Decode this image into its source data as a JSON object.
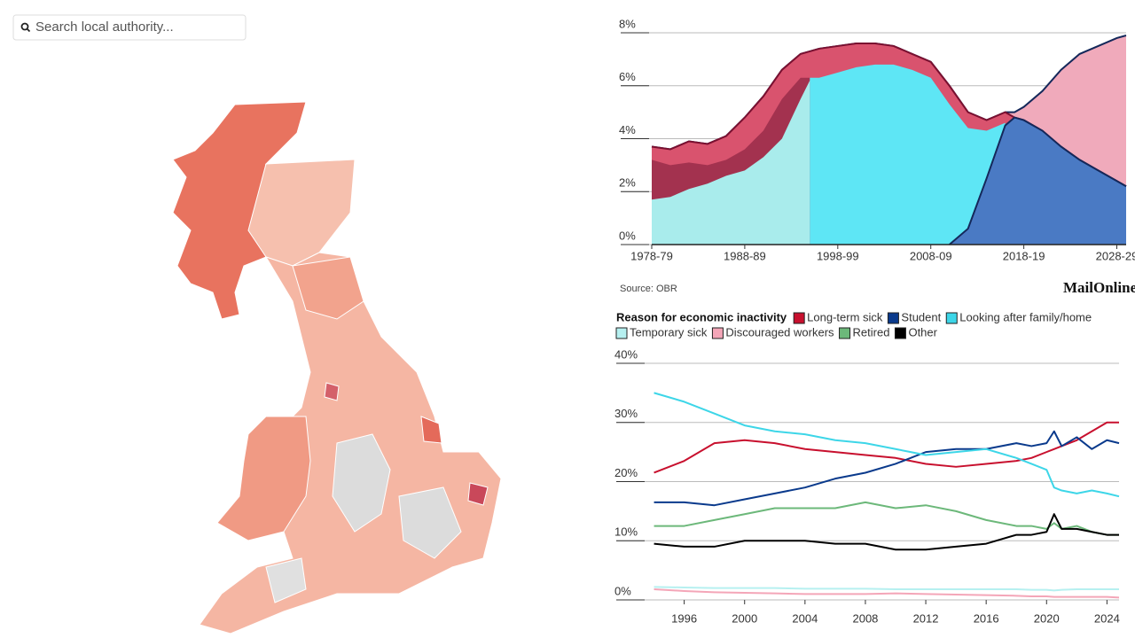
{
  "search": {
    "placeholder": "Search local authority..."
  },
  "logo": "MailOnline",
  "chart_data": [
    {
      "type": "area",
      "source": "Source: OBR",
      "x": [
        1978,
        1980,
        1982,
        1984,
        1986,
        1988,
        1990,
        1992,
        1994,
        1995,
        1996,
        1998,
        2000,
        2002,
        2004,
        2006,
        2008,
        2010,
        2012,
        2014,
        2016,
        2017,
        2018,
        2020,
        2022,
        2024,
        2026,
        2028,
        2029
      ],
      "xlim": [
        1978,
        2029
      ],
      "xticks": [
        {
          "value": 1978,
          "label": "1978-79"
        },
        {
          "value": 1988,
          "label": "1988-89"
        },
        {
          "value": 1998,
          "label": "1998-99"
        },
        {
          "value": 2008,
          "label": "2008-09"
        },
        {
          "value": 2018,
          "label": "2018-19"
        },
        {
          "value": 2028,
          "label": "2028-29"
        }
      ],
      "ylim": [
        0,
        8
      ],
      "yticks": [
        {
          "value": 0,
          "label": "0%"
        },
        {
          "value": 2,
          "label": "2%"
        },
        {
          "value": 4,
          "label": "4%"
        },
        {
          "value": 6,
          "label": "6%"
        },
        {
          "value": 8,
          "label": "8%"
        }
      ],
      "grid": true,
      "series": [
        {
          "color": "#f0aabb",
          "line": "#14285a",
          "values": [
            3.7,
            3.6,
            3.9,
            3.8,
            4.1,
            4.8,
            5.6,
            6.6,
            7.2,
            7.3,
            7.4,
            7.5,
            7.6,
            7.6,
            7.5,
            7.2,
            6.9,
            6.0,
            5.0,
            4.7,
            5.0,
            5.0,
            5.2,
            5.8,
            6.6,
            7.2,
            7.5,
            7.8,
            7.9
          ]
        },
        {
          "color": "#d9536e",
          "line": "#7a1030",
          "values": [
            3.7,
            3.6,
            3.9,
            3.8,
            4.1,
            4.8,
            5.6,
            6.6,
            7.2,
            7.3,
            7.4,
            7.5,
            7.6,
            7.6,
            7.5,
            7.2,
            6.9,
            6.0,
            5.0,
            4.7,
            5.0,
            4.8,
            4.7,
            4.3,
            3.7,
            3.2,
            2.8,
            2.4,
            2.2
          ]
        },
        {
          "color": "#a3324f",
          "values": [
            3.2,
            3.0,
            3.1,
            3.0,
            3.2,
            3.6,
            4.3,
            5.5,
            6.3,
            6.3,
            null,
            null,
            null,
            null,
            null,
            null,
            null,
            null,
            null,
            null,
            null,
            null,
            null,
            null,
            null,
            null,
            null,
            null,
            null
          ]
        },
        {
          "color": "#a9ecec",
          "values": [
            1.7,
            1.8,
            2.1,
            2.3,
            2.6,
            2.8,
            3.3,
            4.0,
            5.5,
            6.2,
            null,
            null,
            null,
            null,
            null,
            null,
            null,
            null,
            null,
            null,
            null,
            null,
            null,
            null,
            null,
            null,
            null,
            null,
            null
          ]
        },
        {
          "color": "#5ee6f5",
          "values": [
            null,
            null,
            null,
            null,
            null,
            null,
            null,
            null,
            null,
            6.3,
            6.3,
            6.5,
            6.7,
            6.8,
            6.8,
            6.6,
            6.3,
            5.3,
            4.4,
            4.3,
            4.6,
            null,
            null,
            null,
            null,
            null,
            null,
            null,
            null
          ]
        },
        {
          "color": "#4a7ac4",
          "line": "#14285a",
          "values": [
            null,
            null,
            null,
            null,
            null,
            null,
            null,
            null,
            null,
            null,
            null,
            null,
            null,
            null,
            null,
            null,
            null,
            0,
            0.6,
            2.5,
            4.5,
            4.8,
            4.7,
            4.3,
            3.7,
            3.2,
            2.8,
            2.4,
            2.2
          ]
        }
      ]
    },
    {
      "type": "line",
      "legend_title": "Reason for economic inactivity",
      "x": [
        1994,
        1996,
        1998,
        2000,
        2002,
        2004,
        2006,
        2008,
        2010,
        2012,
        2014,
        2016,
        2018,
        2019,
        2020,
        2020.5,
        2021,
        2022,
        2023,
        2024,
        2024.8
      ],
      "xlim": [
        1991.5,
        2024.8
      ],
      "xticks": [
        1996,
        2000,
        2004,
        2008,
        2012,
        2016,
        2020,
        2024
      ],
      "ylim": [
        0,
        40
      ],
      "yticks": [
        {
          "value": 0,
          "label": "0%"
        },
        {
          "value": 10,
          "label": "10%"
        },
        {
          "value": 20,
          "label": "20%"
        },
        {
          "value": 30,
          "label": "30%"
        },
        {
          "value": 40,
          "label": "40%"
        }
      ],
      "grid": true,
      "series": [
        {
          "name": "Long-term sick",
          "color": "#c8102e",
          "values": [
            21.5,
            23.5,
            26.5,
            27,
            26.5,
            25.5,
            25,
            24.5,
            24,
            23,
            22.5,
            23,
            23.5,
            24,
            25,
            25.5,
            26,
            27,
            28.5,
            30,
            30
          ]
        },
        {
          "name": "Student",
          "color": "#0a3a8c",
          "values": [
            16.5,
            16.5,
            16,
            17,
            18,
            19,
            20.5,
            21.5,
            23,
            25,
            25.5,
            25.5,
            26.5,
            26,
            26.5,
            28.5,
            26,
            27.5,
            25.5,
            27,
            26.5
          ]
        },
        {
          "name": "Looking after family/home",
          "color": "#3dd6e8",
          "values": [
            35,
            33.5,
            31.5,
            29.5,
            28.5,
            28,
            27,
            26.5,
            25.5,
            24.5,
            25,
            25.5,
            24,
            23,
            22,
            19,
            18.5,
            18,
            18.5,
            18,
            17.5
          ]
        },
        {
          "name": "Temporary sick",
          "color": "#b6f0f0",
          "values": [
            2.2,
            2.1,
            2.0,
            2.0,
            2.0,
            1.9,
            1.9,
            1.9,
            1.8,
            1.8,
            1.8,
            1.8,
            1.8,
            1.7,
            1.7,
            1.6,
            1.7,
            1.8,
            1.8,
            1.8,
            1.8
          ]
        },
        {
          "name": "Discouraged workers",
          "color": "#f4a6b8",
          "values": [
            1.8,
            1.5,
            1.3,
            1.2,
            1.1,
            1.0,
            1.0,
            1.0,
            1.1,
            1.0,
            0.9,
            0.8,
            0.7,
            0.6,
            0.6,
            0.5,
            0.5,
            0.5,
            0.5,
            0.5,
            0.4
          ]
        },
        {
          "name": "Retired",
          "color": "#6cb87a",
          "values": [
            12.5,
            12.5,
            13.5,
            14.5,
            15.5,
            15.5,
            15.5,
            16.5,
            15.5,
            16,
            15,
            13.5,
            12.5,
            12.5,
            12,
            13,
            12,
            12.5,
            11.5,
            11,
            11
          ]
        },
        {
          "name": "Other",
          "color": "#000000",
          "values": [
            9.5,
            9,
            9,
            10,
            10,
            10,
            9.5,
            9.5,
            8.5,
            8.5,
            9,
            9.5,
            11,
            11,
            11.5,
            14.5,
            12,
            12,
            11.5,
            11,
            11
          ]
        }
      ]
    }
  ]
}
